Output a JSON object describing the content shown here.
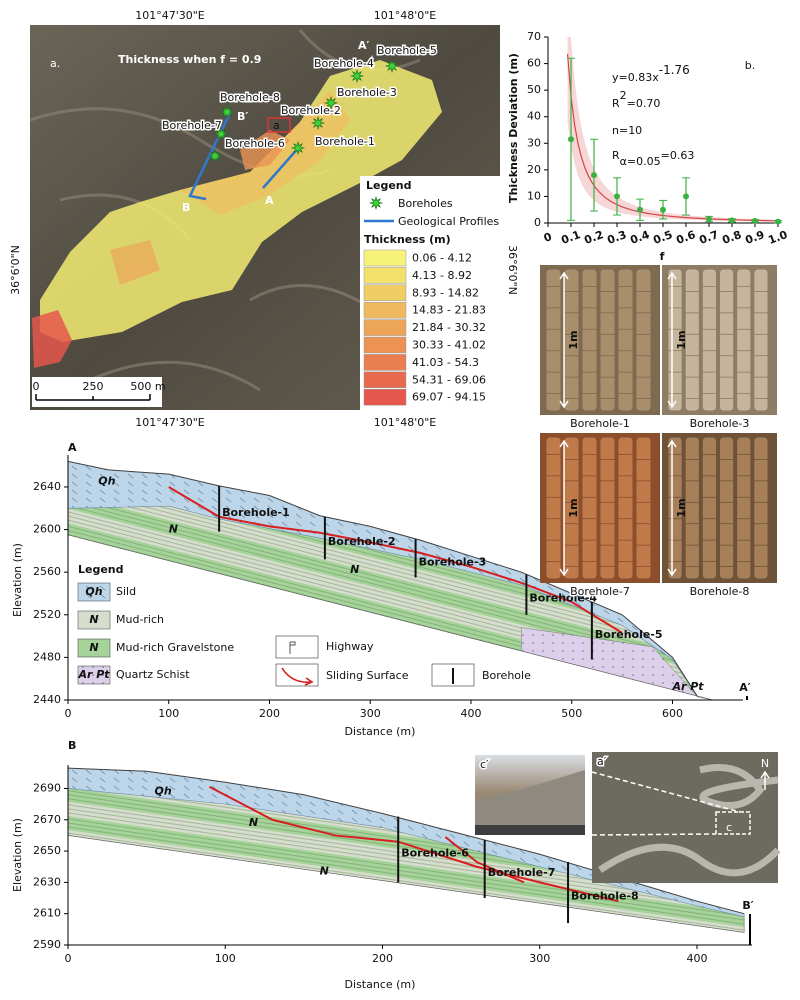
{
  "map": {
    "panel_label": "a.",
    "title": "Thickness when f = 0.9",
    "lon_labels": [
      "101°47'30\"E",
      "101°48'0\"E"
    ],
    "lat_label": "36°6'0\"N",
    "boreholes": [
      "Borehole-1",
      "Borehole-2",
      "Borehole-3",
      "Borehole-4",
      "Borehole-5",
      "Borehole-6",
      "Borehole-7",
      "Borehole-8"
    ],
    "profile_labels": [
      "A",
      "A′",
      "B",
      "B′"
    ],
    "detail_label": "a",
    "legend": {
      "title": "Legend",
      "items": [
        "Boreholes",
        "Geological Profiles"
      ],
      "thickness_title": "Thickness (m)",
      "classes": [
        {
          "label": "0.06 - 4.12",
          "color": "#f6f27a"
        },
        {
          "label": "4.13 - 8.92",
          "color": "#f3e16d"
        },
        {
          "label": "8.93 - 14.82",
          "color": "#f1cd66"
        },
        {
          "label": "14.83 - 21.83",
          "color": "#efb95f"
        },
        {
          "label": "21.84 - 30.32",
          "color": "#eda559"
        },
        {
          "label": "30.33 - 41.02",
          "color": "#eb9254"
        },
        {
          "label": "41.03 - 54.3",
          "color": "#e97e51"
        },
        {
          "label": "54.31 - 69.06",
          "color": "#e76a4e"
        },
        {
          "label": "69.07 - 94.15",
          "color": "#e5574c"
        }
      ]
    },
    "scale": [
      "0",
      "250",
      "500 m"
    ]
  },
  "chart_data": {
    "type": "scatter",
    "panel_label": "b.",
    "x": [
      0.1,
      0.2,
      0.3,
      0.4,
      0.5,
      0.6,
      0.7,
      0.8,
      0.9,
      1
    ],
    "values": [
      31.5,
      18,
      10,
      5,
      5,
      10,
      1.5,
      1,
      0.8,
      0.5
    ],
    "errors": [
      30.5,
      13.5,
      7,
      4,
      3.5,
      7,
      1,
      0.6,
      0.5,
      0.4
    ],
    "color": "#3cb043",
    "xlim": [
      0,
      1
    ],
    "ylim": [
      0,
      70
    ],
    "xticks": [
      0,
      0.1,
      0.2,
      0.3,
      0.4,
      0.5,
      0.6,
      0.7,
      0.8,
      0.9,
      {
        "value": 1,
        "label": "1.0"
      }
    ],
    "yticks": [
      0,
      10,
      20,
      30,
      40,
      50,
      60,
      70
    ],
    "xlabel": "f",
    "ylabel": "Thickness Deviation (m)",
    "fit": {
      "prefix": "y=",
      "coefficient": 0.83,
      "variable": "x",
      "exponent": -1.76,
      "color": "#d64545"
    },
    "stats": {
      "r2_symbol": "R",
      "r2_sup": "2",
      "r2_value": "=0.70",
      "n": "n=10",
      "r_symbol": "R",
      "r_sub": "α=0.05",
      "r_value": "=0.63"
    }
  },
  "photos": [
    {
      "label": "Borehole-1",
      "scale": "1m"
    },
    {
      "label": "Borehole-3",
      "scale": "1m"
    },
    {
      "label": "Borehole-7",
      "scale": "1m"
    },
    {
      "label": "Borehole-8",
      "scale": "1m"
    }
  ],
  "sections": [
    {
      "start_label": "A",
      "end_label": "A′",
      "xlabel": "Distance (m)",
      "ylabel": "Elevation (m)",
      "xlim": [
        0,
        670
      ],
      "ylim": [
        2440,
        2670
      ],
      "xticks": [
        0,
        100,
        200,
        300,
        400,
        500,
        600
      ],
      "yticks": [
        2440,
        2480,
        2520,
        2560,
        2600,
        2640
      ],
      "units": [
        "Qh",
        "N",
        "N",
        "Ar  Pt"
      ],
      "ground": {
        "distance": [
          0,
          40,
          100,
          150,
          200,
          250,
          300,
          350,
          400,
          450,
          500,
          550,
          600,
          625
        ],
        "elevation": [
          2664,
          2656,
          2652,
          2641,
          2632,
          2613,
          2603,
          2590,
          2575,
          2560,
          2540,
          2520,
          2480,
          2443
        ]
      },
      "qh_base": {
        "distance": [
          0,
          100,
          150,
          250,
          350,
          450,
          550,
          600
        ],
        "elevation": [
          2620,
          2622,
          2610,
          2592,
          2572,
          2548,
          2510,
          2478
        ]
      },
      "base": {
        "distance": [
          0,
          640
        ],
        "elevation": [
          2595,
          2440
        ]
      },
      "schist": {
        "distance": [
          450,
          580,
          625,
          640,
          450
        ],
        "elevation": [
          2508,
          2490,
          2443,
          2440,
          2486
        ]
      },
      "sliding_surfaces": [
        {
          "distance": [
            100,
            150,
            200,
            250,
            300,
            350,
            400,
            450,
            500,
            550
          ],
          "elevation": [
            2640,
            2612,
            2603,
            2597,
            2588,
            2578,
            2565,
            2550,
            2532,
            2503
          ]
        }
      ],
      "boreholes": [
        {
          "label": "Borehole-1",
          "distance": 150,
          "top": 2641,
          "bottom": 2598
        },
        {
          "label": "Borehole-2",
          "distance": 255,
          "top": 2612,
          "bottom": 2572
        },
        {
          "label": "Borehole-3",
          "distance": 345,
          "top": 2591,
          "bottom": 2555
        },
        {
          "label": "Borehole-4",
          "distance": 455,
          "top": 2558,
          "bottom": 2520
        },
        {
          "label": "Borehole-5",
          "distance": 520,
          "top": 2532,
          "bottom": 2478
        }
      ],
      "legend": {
        "title": "Legend",
        "items": [
          {
            "symbol": "Qh",
            "label": "Sild"
          },
          {
            "symbol": "N",
            "label": "Mud-rich"
          },
          {
            "symbol": "N",
            "label": "Mud-rich Gravelstone"
          },
          {
            "symbol": "Ar  Pt",
            "label": "Quartz Schist"
          },
          {
            "label": "Highway"
          },
          {
            "label": "Sliding Surface"
          },
          {
            "label": "Borehole"
          }
        ]
      }
    },
    {
      "start_label": "B",
      "end_label": "B′",
      "xlabel": "Distance (m)",
      "ylabel": "Elevation (m)",
      "xlim": [
        0,
        435
      ],
      "ylim": [
        2590,
        2705
      ],
      "xticks": [
        0,
        100,
        200,
        300,
        400
      ],
      "yticks": [
        2590,
        2610,
        2630,
        2650,
        2670,
        2690
      ],
      "units": [
        "Qh",
        "N",
        "N"
      ],
      "ground": {
        "distance": [
          0,
          50,
          100,
          150,
          200,
          250,
          300,
          350,
          400,
          430
        ],
        "elevation": [
          2703,
          2701,
          2694,
          2686,
          2674,
          2661,
          2648,
          2633,
          2618,
          2610
        ]
      },
      "qh_base": {
        "distance": [
          0,
          100,
          200,
          300,
          400,
          430
        ],
        "elevation": [
          2690,
          2680,
          2665,
          2640,
          2615,
          2608
        ]
      },
      "base": {
        "distance": [
          0,
          430
        ],
        "elevation": [
          2660,
          2598
        ]
      },
      "sliding_surfaces": [
        {
          "distance": [
            90,
            130,
            170,
            210,
            260,
            300,
            350
          ],
          "elevation": [
            2691,
            2670,
            2660,
            2656,
            2640,
            2630,
            2618
          ]
        },
        {
          "distance": [
            240,
            260,
            290
          ],
          "elevation": [
            2659,
            2643,
            2630
          ]
        }
      ],
      "boreholes": [
        {
          "label": "Borehole-6",
          "distance": 210,
          "top": 2672,
          "bottom": 2630
        },
        {
          "label": "Borehole-7",
          "distance": 265,
          "top": 2657,
          "bottom": 2620
        },
        {
          "label": "Borehole-8",
          "distance": 318,
          "top": 2643,
          "bottom": 2604
        }
      ],
      "insets": {
        "photo_label": "c′",
        "aerial_label": "a′",
        "detail_label": "c",
        "north": "N"
      }
    }
  ]
}
